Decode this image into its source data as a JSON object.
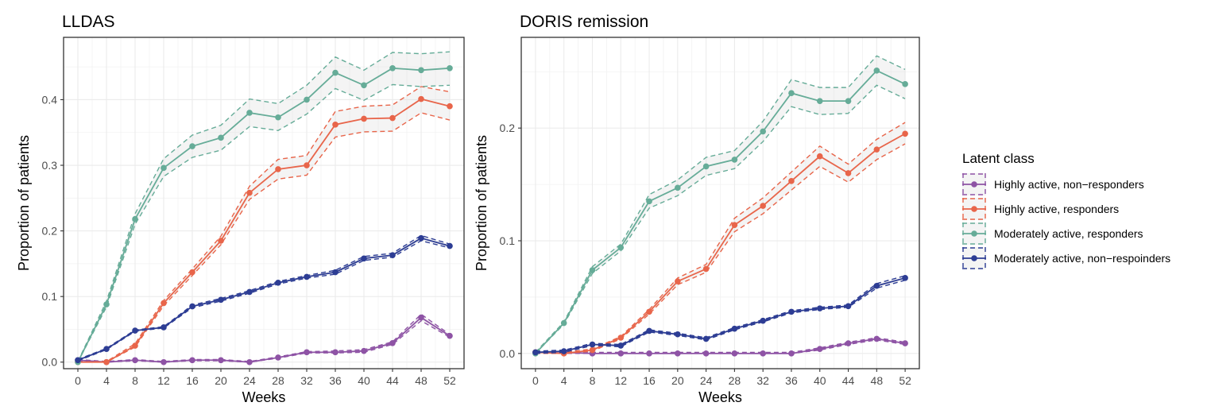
{
  "chart_data": [
    {
      "type": "line",
      "title": "LLDAS",
      "xlabel": "Weeks",
      "ylabel": "Proportion of patients",
      "x": [
        0,
        4,
        8,
        12,
        16,
        20,
        24,
        28,
        32,
        36,
        40,
        44,
        48,
        52
      ],
      "xlim": [
        -2,
        54
      ],
      "ylim": [
        -0.01,
        0.495
      ],
      "yticks": [
        0.0,
        0.1,
        0.2,
        0.3,
        0.4
      ],
      "ytick_labels": [
        "0.0",
        "0.1",
        "0.2",
        "0.3",
        "0.4"
      ],
      "grid": true,
      "series": [
        {
          "name": "Highly active, non−responders",
          "color": "#8E53A5",
          "values": [
            0.003,
            0.0,
            0.003,
            0.0,
            0.003,
            0.003,
            0.0,
            0.007,
            0.015,
            0.015,
            0.017,
            0.029,
            0.068,
            0.04
          ],
          "lower": [
            0.002,
            0.0,
            0.002,
            0.0,
            0.002,
            0.002,
            0.0,
            0.006,
            0.014,
            0.014,
            0.015,
            0.027,
            0.063,
            0.038
          ],
          "upper": [
            0.004,
            0.001,
            0.004,
            0.001,
            0.004,
            0.004,
            0.001,
            0.008,
            0.016,
            0.017,
            0.019,
            0.031,
            0.073,
            0.042
          ]
        },
        {
          "name": "Highly active, responders",
          "color": "#E8654A",
          "values": [
            0.0,
            0.0,
            0.025,
            0.09,
            0.137,
            0.185,
            0.258,
            0.294,
            0.3,
            0.362,
            0.371,
            0.372,
            0.401,
            0.39
          ],
          "lower": [
            0.0,
            0.0,
            0.023,
            0.086,
            0.132,
            0.179,
            0.248,
            0.279,
            0.285,
            0.343,
            0.351,
            0.352,
            0.38,
            0.369
          ],
          "upper": [
            0.0,
            0.001,
            0.028,
            0.094,
            0.142,
            0.192,
            0.268,
            0.309,
            0.315,
            0.382,
            0.39,
            0.392,
            0.42,
            0.412
          ]
        },
        {
          "name": "Moderately active, responders",
          "color": "#66AC98",
          "values": [
            0.0,
            0.088,
            0.218,
            0.296,
            0.329,
            0.342,
            0.38,
            0.373,
            0.4,
            0.441,
            0.422,
            0.448,
            0.445,
            0.448
          ],
          "lower": [
            0.0,
            0.084,
            0.21,
            0.283,
            0.312,
            0.323,
            0.359,
            0.353,
            0.378,
            0.417,
            0.399,
            0.423,
            0.42,
            0.422
          ],
          "upper": [
            0.001,
            0.093,
            0.226,
            0.31,
            0.346,
            0.361,
            0.401,
            0.394,
            0.422,
            0.465,
            0.445,
            0.472,
            0.47,
            0.473
          ]
        },
        {
          "name": "Moderately active, non−respoinders",
          "color": "#2D3D94",
          "values": [
            0.003,
            0.02,
            0.048,
            0.053,
            0.085,
            0.095,
            0.107,
            0.121,
            0.13,
            0.137,
            0.158,
            0.163,
            0.189,
            0.177
          ],
          "lower": [
            0.002,
            0.019,
            0.047,
            0.052,
            0.083,
            0.093,
            0.105,
            0.119,
            0.128,
            0.134,
            0.155,
            0.16,
            0.185,
            0.174
          ],
          "upper": [
            0.004,
            0.021,
            0.049,
            0.054,
            0.087,
            0.097,
            0.109,
            0.123,
            0.132,
            0.14,
            0.161,
            0.166,
            0.193,
            0.18
          ]
        }
      ]
    },
    {
      "type": "line",
      "title": "DORIS remission",
      "xlabel": "Weeks",
      "ylabel": "Proportion of patients",
      "x": [
        0,
        4,
        8,
        12,
        16,
        20,
        24,
        28,
        32,
        36,
        40,
        44,
        48,
        52
      ],
      "xlim": [
        -2,
        54
      ],
      "ylim": [
        -0.0135,
        0.2805
      ],
      "yticks": [
        0.0,
        0.1,
        0.2
      ],
      "ytick_labels": [
        "0.0",
        "0.1",
        "0.2"
      ],
      "grid": true,
      "series": [
        {
          "name": "Highly active, non−responders",
          "color": "#8E53A5",
          "values": [
            0.001,
            0.001,
            0.0,
            0.0,
            0.0,
            0.0,
            0.0,
            0.0,
            0.0,
            0.0,
            0.004,
            0.009,
            0.013,
            0.009
          ],
          "lower": [
            0.0,
            0.0,
            0.0,
            0.0,
            0.0,
            0.0,
            0.0,
            0.0,
            0.0,
            0.0,
            0.003,
            0.008,
            0.012,
            0.008
          ],
          "upper": [
            0.002,
            0.002,
            0.001,
            0.001,
            0.001,
            0.001,
            0.001,
            0.001,
            0.001,
            0.001,
            0.005,
            0.01,
            0.014,
            0.01
          ]
        },
        {
          "name": "Highly active, responders",
          "color": "#E8654A",
          "values": [
            0.001,
            0.0,
            0.003,
            0.014,
            0.037,
            0.064,
            0.075,
            0.114,
            0.131,
            0.153,
            0.175,
            0.16,
            0.181,
            0.195
          ],
          "lower": [
            0.0,
            0.0,
            0.002,
            0.013,
            0.035,
            0.061,
            0.072,
            0.108,
            0.124,
            0.145,
            0.166,
            0.152,
            0.172,
            0.186
          ],
          "upper": [
            0.002,
            0.001,
            0.004,
            0.015,
            0.039,
            0.067,
            0.079,
            0.12,
            0.138,
            0.161,
            0.184,
            0.168,
            0.19,
            0.205
          ]
        },
        {
          "name": "Moderately active, responders",
          "color": "#66AC98",
          "values": [
            0.0,
            0.027,
            0.074,
            0.094,
            0.135,
            0.147,
            0.166,
            0.172,
            0.197,
            0.231,
            0.224,
            0.224,
            0.251,
            0.239
          ],
          "lower": [
            0.0,
            0.026,
            0.071,
            0.091,
            0.129,
            0.14,
            0.158,
            0.164,
            0.188,
            0.219,
            0.212,
            0.213,
            0.238,
            0.226
          ],
          "upper": [
            0.001,
            0.028,
            0.077,
            0.097,
            0.141,
            0.154,
            0.174,
            0.18,
            0.206,
            0.243,
            0.236,
            0.236,
            0.264,
            0.252
          ]
        },
        {
          "name": "Moderately active, non−respoinders",
          "color": "#2D3D94",
          "values": [
            0.001,
            0.002,
            0.008,
            0.007,
            0.02,
            0.017,
            0.013,
            0.022,
            0.029,
            0.037,
            0.04,
            0.042,
            0.06,
            0.067
          ],
          "lower": [
            0.0,
            0.001,
            0.007,
            0.006,
            0.019,
            0.016,
            0.012,
            0.021,
            0.028,
            0.036,
            0.039,
            0.041,
            0.058,
            0.065
          ],
          "upper": [
            0.002,
            0.003,
            0.009,
            0.008,
            0.021,
            0.018,
            0.014,
            0.023,
            0.03,
            0.038,
            0.041,
            0.043,
            0.062,
            0.069
          ]
        }
      ]
    }
  ],
  "legend": {
    "title": "Latent class",
    "placement": "right",
    "entries": [
      {
        "label": "Highly active, non−responders",
        "color": "#8E53A5"
      },
      {
        "label": "Highly active, responders",
        "color": "#E8654A"
      },
      {
        "label": "Moderately active, responders",
        "color": "#66AC98"
      },
      {
        "label": "Moderately active, non−respoinders",
        "color": "#2D3D94"
      }
    ]
  }
}
